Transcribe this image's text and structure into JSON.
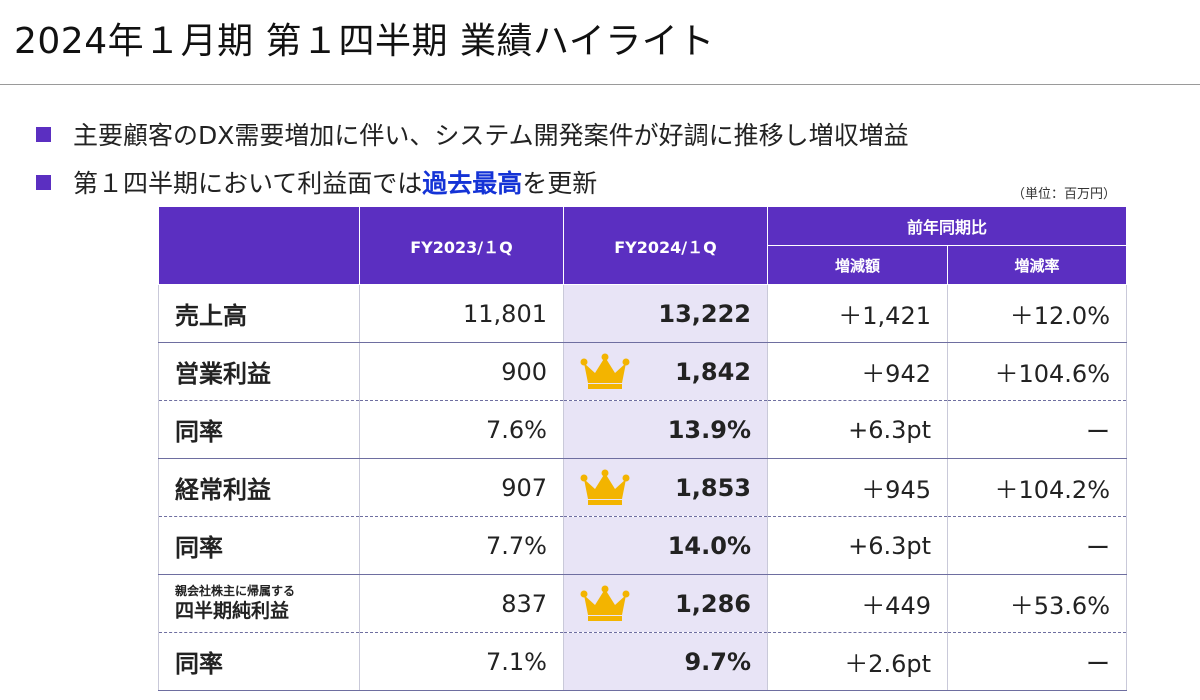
{
  "header": {
    "title": "2024年１月期 第１四半期 業績ハイライト"
  },
  "bullets": [
    {
      "text": "主要顧客のDX需要増加に伴い、システム開発案件が好調に推移し増収増益"
    },
    {
      "pre": "第１四半期において利益面では",
      "highlight": "過去最高",
      "post": "を更新"
    }
  ],
  "unit_note": "（単位：百万円）",
  "table": {
    "col_prev": "FY2023/１Q",
    "col_curr": "FY2024/１Q",
    "col_yoy": "前年同期比",
    "col_diff": "増減額",
    "col_rate": "増減率",
    "rows": [
      {
        "label": "売上高",
        "prev": "11,801",
        "curr": "13,222",
        "diff": "＋1,421",
        "rate": "＋12.0%"
      },
      {
        "label": "営業利益",
        "prev": "900",
        "curr": "1,842",
        "diff": "＋942",
        "rate": "＋104.6%"
      },
      {
        "label": "同率",
        "prev": "7.6%",
        "curr": "13.9%",
        "diff": "+6.3pt",
        "rate": "ー"
      },
      {
        "label": "経常利益",
        "prev": "907",
        "curr": "1,853",
        "diff": "＋945",
        "rate": "＋104.2%"
      },
      {
        "label": "同率",
        "prev": "7.7%",
        "curr": "14.0%",
        "diff": "+6.3pt",
        "rate": "ー"
      },
      {
        "label_small": "親会社株主に帰属する",
        "label": "四半期純利益",
        "prev": "837",
        "curr": "1,286",
        "diff": "＋449",
        "rate": "＋53.6%"
      },
      {
        "label": "同率",
        "prev": "7.1%",
        "curr": "9.7%",
        "diff": "＋2.6pt",
        "rate": "ー"
      }
    ]
  },
  "icons": {
    "record_high": "crown-icon"
  },
  "colors": {
    "accent": "#5b2fc1",
    "highlight": "#1433d6",
    "current_col": "#e8e4f6",
    "crown": "#f3b400"
  }
}
